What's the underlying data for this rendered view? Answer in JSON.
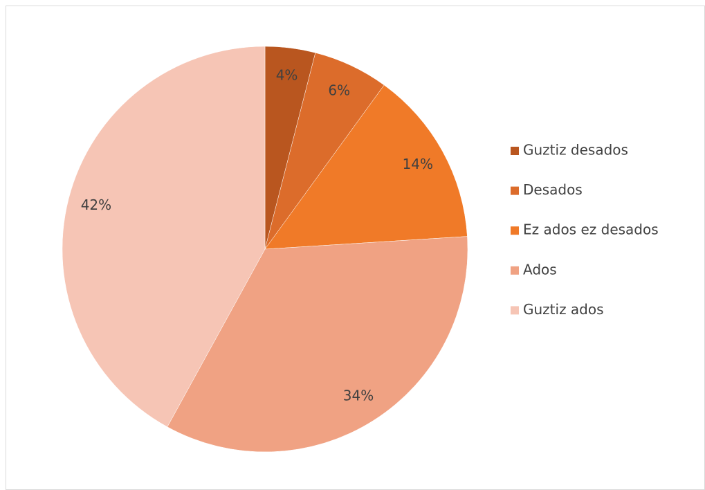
{
  "chart_data": {
    "type": "pie",
    "categories": [
      "Guztiz desados",
      "Desados",
      "Ez ados ez desados",
      "Ados",
      "Guztiz ados"
    ],
    "values": [
      4,
      6,
      14,
      34,
      42
    ],
    "value_labels": [
      "4%",
      "6%",
      "14%",
      "34%",
      "42%"
    ],
    "colors": [
      "#b9561f",
      "#dc6c2b",
      "#f07a28",
      "#f0a283",
      "#f6c5b5"
    ],
    "legend": "right"
  }
}
